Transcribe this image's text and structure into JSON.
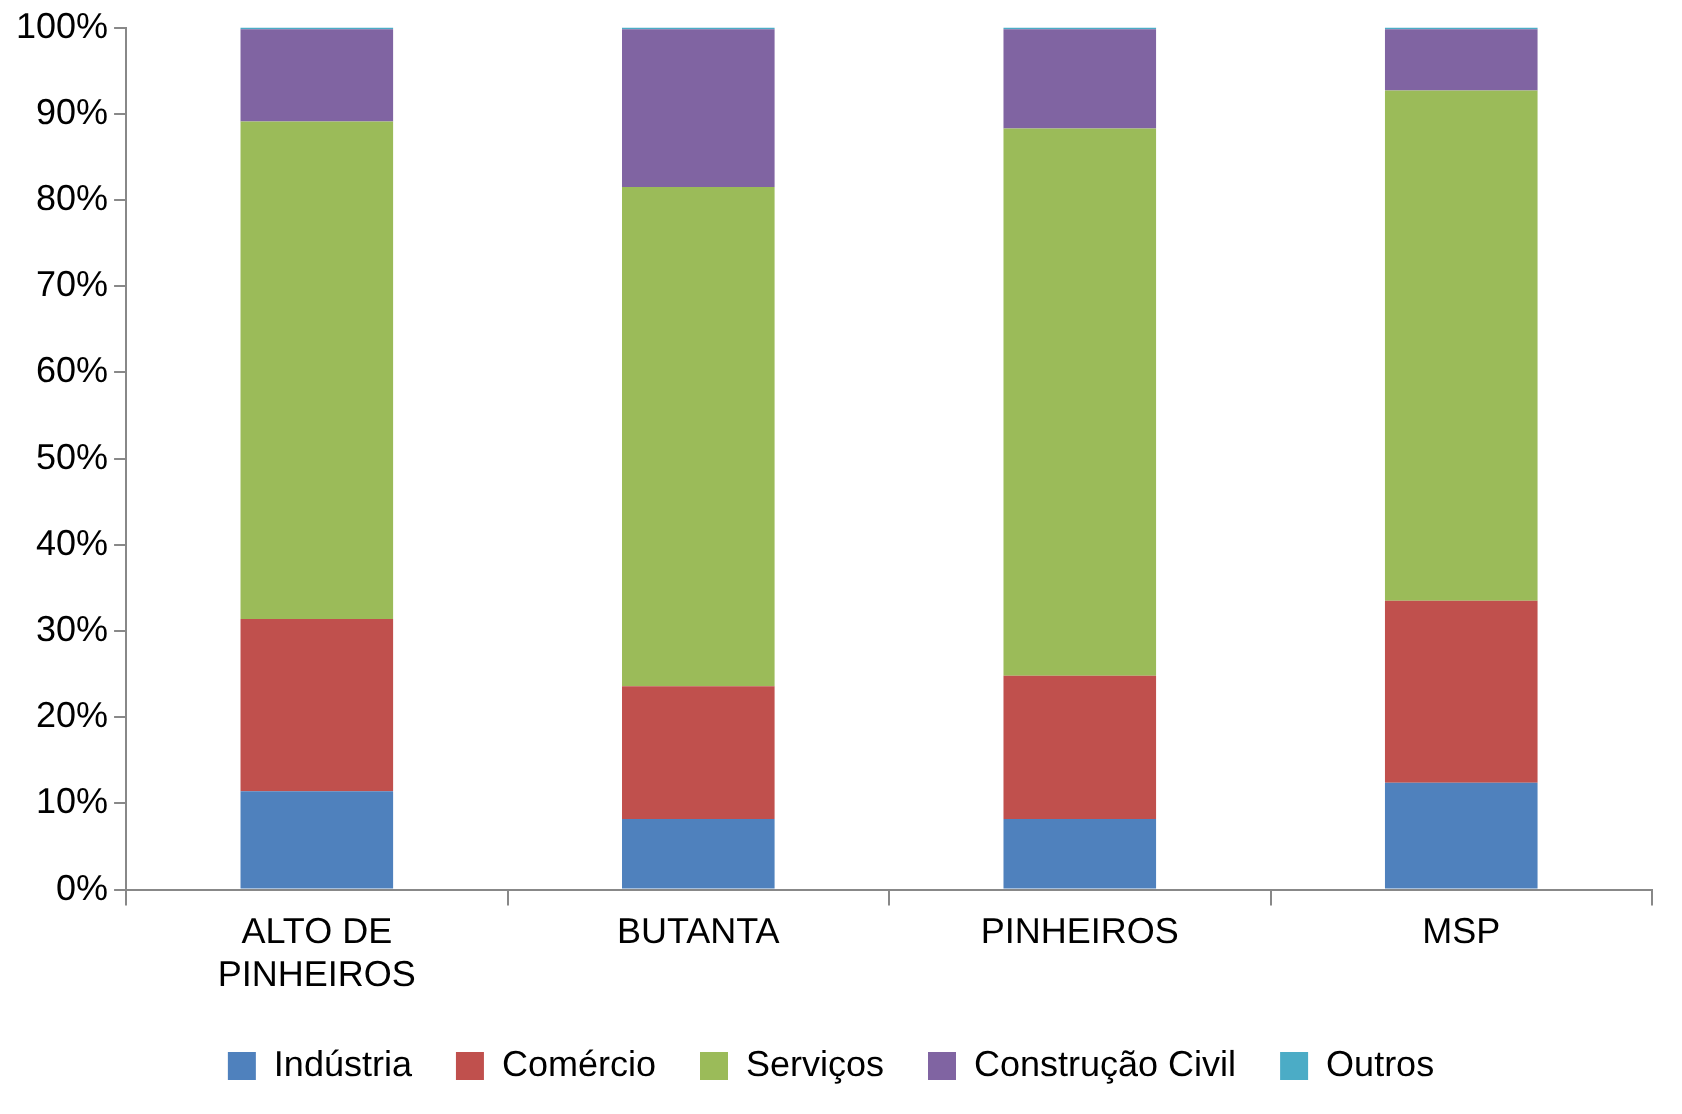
{
  "chart_data": {
    "type": "bar",
    "stacked": true,
    "categories": [
      "ALTO DE PINHEIROS",
      "BUTANTA",
      "PINHEIROS",
      "MSP"
    ],
    "series": [
      {
        "name": "Indústria",
        "color": "#4f81bd",
        "values": [
          11.4,
          8.2,
          8.2,
          12.4
        ]
      },
      {
        "name": "Comércio",
        "color": "#c0504d",
        "values": [
          20.0,
          15.4,
          16.6,
          21.1
        ]
      },
      {
        "name": "Serviços",
        "color": "#9bbb59",
        "values": [
          57.7,
          57.9,
          63.5,
          59.2
        ]
      },
      {
        "name": "Construção Civil",
        "color": "#8064a2",
        "values": [
          10.7,
          18.3,
          11.5,
          7.1
        ]
      },
      {
        "name": "Outros",
        "color": "#4bacc6",
        "values": [
          0.2,
          0.2,
          0.2,
          0.2
        ]
      }
    ],
    "ylim": [
      0,
      100
    ],
    "yticks": [
      {
        "value": 0,
        "label": "0%"
      },
      {
        "value": 10,
        "label": "10%"
      },
      {
        "value": 20,
        "label": "20%"
      },
      {
        "value": 30,
        "label": "30%"
      },
      {
        "value": 40,
        "label": "40%"
      },
      {
        "value": 50,
        "label": "50%"
      },
      {
        "value": 60,
        "label": "60%"
      },
      {
        "value": 70,
        "label": "70%"
      },
      {
        "value": 80,
        "label": "80%"
      },
      {
        "value": 90,
        "label": "90%"
      },
      {
        "value": 100,
        "label": "100%"
      }
    ],
    "grid": false,
    "legend": "bottom"
  }
}
